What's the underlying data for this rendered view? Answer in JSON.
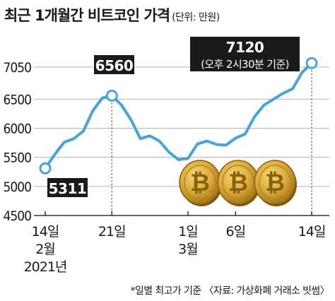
{
  "title": "최근 1개월간 비트코인 가격",
  "unit": "(단위: 만원)",
  "footnote": "*일별 최고가 기준 〈자료: 가상화폐 거래소 빗썸〉",
  "colors": {
    "line": "#4aa3d6",
    "grid": "#b5b5b5",
    "label_bg": "#1a1a1a",
    "label_text": "#ffffff",
    "coin": "#c89a2a"
  },
  "chart_data": {
    "type": "line",
    "title": "최근 1개월간 비트코인 가격",
    "ylabel": "(단위: 만원)",
    "ylim": [
      4500,
      7300
    ],
    "yticks": [
      4500,
      5000,
      5500,
      6000,
      6500,
      7050
    ],
    "xticks": [
      {
        "day": 0,
        "lines": [
          "14일",
          "2월",
          "2021년"
        ]
      },
      {
        "day": 7,
        "lines": [
          "21일"
        ]
      },
      {
        "day": 15,
        "lines": [
          "1일",
          "3월"
        ]
      },
      {
        "day": 20,
        "lines": [
          "6일"
        ]
      },
      {
        "day": 28,
        "lines": [
          "14일"
        ]
      }
    ],
    "series": [
      {
        "dates": [
          "2021-02-14",
          "2021-02-15",
          "2021-02-16",
          "2021-02-17",
          "2021-02-18",
          "2021-02-19",
          "2021-02-20",
          "2021-02-21",
          "2021-02-22",
          "2021-02-23",
          "2021-02-24",
          "2021-02-25",
          "2021-02-26",
          "2021-02-27",
          "2021-02-28",
          "2021-03-01",
          "2021-03-02",
          "2021-03-03",
          "2021-03-04",
          "2021-03-05",
          "2021-03-06",
          "2021-03-07",
          "2021-03-08",
          "2021-03-09",
          "2021-03-10",
          "2021-03-11",
          "2021-03-12",
          "2021-03-13",
          "2021-03-14"
        ],
        "values": [
          5311,
          5550,
          5760,
          5820,
          5950,
          6300,
          6520,
          6560,
          6400,
          6150,
          5820,
          5870,
          5780,
          5590,
          5460,
          5480,
          5730,
          5780,
          5720,
          5710,
          5830,
          5900,
          6200,
          6400,
          6500,
          6600,
          6680,
          6960,
          7120
        ]
      }
    ],
    "annotations": [
      {
        "day": 0,
        "value": 5311,
        "label": "5311"
      },
      {
        "day": 7,
        "value": 6560,
        "label": "6560"
      },
      {
        "day": 28,
        "value": 7120,
        "label": "7120",
        "sublabel": "(오후 2시30분 기준)"
      }
    ]
  }
}
